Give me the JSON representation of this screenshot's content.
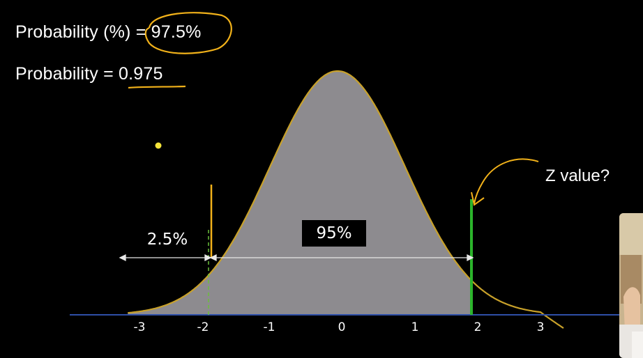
{
  "text": {
    "probability_percent": "Probability (%) = 97.5%",
    "probability_decimal": "Probability = 0.975",
    "left_tail": "2.5%",
    "middle": "95%",
    "question": "Z value?"
  },
  "axis_ticks": [
    "-3",
    "-2",
    "-1",
    "0",
    "1",
    "2",
    "3"
  ],
  "colors": {
    "background": "#000000",
    "curve": "#c8a12a",
    "shade": "#8d8b8f",
    "axis": "#2f4fa8",
    "green_line": "#2bb52b",
    "orange_line": "#f2b21a",
    "dot": "#f4e43a"
  }
}
